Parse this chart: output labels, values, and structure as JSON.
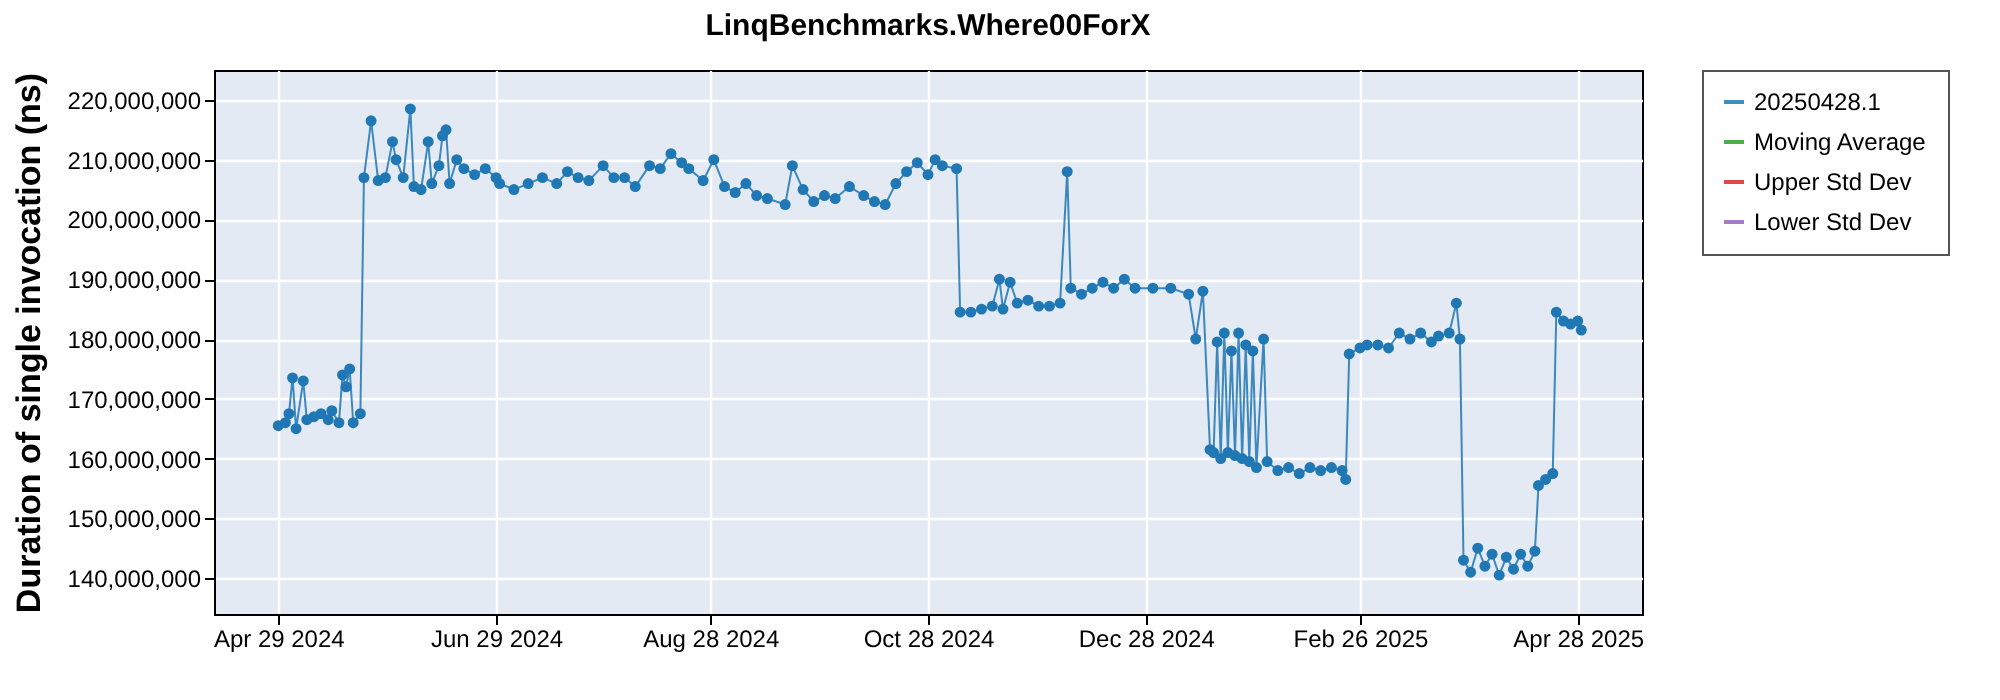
{
  "chart_data": {
    "type": "line",
    "title": "LinqBenchmarks.Where00ForX",
    "ylabel": "Duration of single invocation (ns)",
    "x": [
      "2024-04-29",
      "2024-05-01",
      "2024-05-02",
      "2024-05-03",
      "2024-05-04",
      "2024-05-06",
      "2024-05-07",
      "2024-05-09",
      "2024-05-11",
      "2024-05-13",
      "2024-05-14",
      "2024-05-16",
      "2024-05-17",
      "2024-05-18",
      "2024-05-19",
      "2024-05-20",
      "2024-05-22",
      "2024-05-23",
      "2024-05-25",
      "2024-05-27",
      "2024-05-29",
      "2024-05-31",
      "2024-06-01",
      "2024-06-03",
      "2024-06-05",
      "2024-06-06",
      "2024-06-08",
      "2024-06-10",
      "2024-06-11",
      "2024-06-13",
      "2024-06-14",
      "2024-06-15",
      "2024-06-16",
      "2024-06-18",
      "2024-06-20",
      "2024-06-23",
      "2024-06-26",
      "2024-06-29",
      "2024-06-30",
      "2024-07-04",
      "2024-07-08",
      "2024-07-12",
      "2024-07-16",
      "2024-07-19",
      "2024-07-22",
      "2024-07-25",
      "2024-07-29",
      "2024-08-01",
      "2024-08-04",
      "2024-08-07",
      "2024-08-11",
      "2024-08-14",
      "2024-08-17",
      "2024-08-20",
      "2024-08-22",
      "2024-08-26",
      "2024-08-29",
      "2024-09-01",
      "2024-09-04",
      "2024-09-07",
      "2024-09-10",
      "2024-09-13",
      "2024-09-18",
      "2024-09-20",
      "2024-09-23",
      "2024-09-26",
      "2024-09-29",
      "2024-10-02",
      "2024-10-06",
      "2024-10-10",
      "2024-10-13",
      "2024-10-16",
      "2024-10-19",
      "2024-10-22",
      "2024-10-25",
      "2024-10-28",
      "2024-10-30",
      "2024-11-01",
      "2024-11-05",
      "2024-11-06",
      "2024-11-09",
      "2024-11-12",
      "2024-11-15",
      "2024-11-17",
      "2024-11-18",
      "2024-11-20",
      "2024-11-22",
      "2024-11-25",
      "2024-11-28",
      "2024-12-01",
      "2024-12-04",
      "2024-12-06",
      "2024-12-07",
      "2024-12-10",
      "2024-12-13",
      "2024-12-16",
      "2024-12-19",
      "2024-12-22",
      "2024-12-25",
      "2024-12-30",
      "2025-01-04",
      "2025-01-09",
      "2025-01-11",
      "2025-01-13",
      "2025-01-15",
      "2025-01-16",
      "2025-01-17",
      "2025-01-18",
      "2025-01-19",
      "2025-01-20",
      "2025-01-21",
      "2025-01-22",
      "2025-01-23",
      "2025-01-24",
      "2025-01-25",
      "2025-01-26",
      "2025-01-27",
      "2025-01-28",
      "2025-01-30",
      "2025-01-31",
      "2025-02-03",
      "2025-02-06",
      "2025-02-09",
      "2025-02-12",
      "2025-02-15",
      "2025-02-18",
      "2025-02-21",
      "2025-02-22",
      "2025-02-23",
      "2025-02-26",
      "2025-02-28",
      "2025-03-03",
      "2025-03-06",
      "2025-03-09",
      "2025-03-12",
      "2025-03-15",
      "2025-03-18",
      "2025-03-20",
      "2025-03-23",
      "2025-03-25",
      "2025-03-26",
      "2025-03-27",
      "2025-03-29",
      "2025-03-31",
      "2025-04-02",
      "2025-04-04",
      "2025-04-06",
      "2025-04-08",
      "2025-04-10",
      "2025-04-12",
      "2025-04-14",
      "2025-04-16",
      "2025-04-17",
      "2025-04-19",
      "2025-04-21",
      "2025-04-22",
      "2025-04-24",
      "2025-04-26",
      "2025-04-28",
      "2025-04-29"
    ],
    "series": [
      {
        "name": "20250428.1",
        "color": "#1f77b4",
        "values": [
          165500000,
          166000000,
          167500000,
          173500000,
          165000000,
          173000000,
          166500000,
          167000000,
          167500000,
          166500000,
          168000000,
          166000000,
          174000000,
          172000000,
          175000000,
          166000000,
          167500000,
          207000000,
          216500000,
          206500000,
          207000000,
          213000000,
          210000000,
          207000000,
          218500000,
          205500000,
          205000000,
          213000000,
          206000000,
          209000000,
          214000000,
          215000000,
          206000000,
          210000000,
          208500000,
          207500000,
          208500000,
          207000000,
          206000000,
          205000000,
          206000000,
          207000000,
          206000000,
          208000000,
          207000000,
          206500000,
          209000000,
          207000000,
          207000000,
          205500000,
          209000000,
          208500000,
          211000000,
          209500000,
          208500000,
          206500000,
          210000000,
          205500000,
          204500000,
          206000000,
          204000000,
          203500000,
          202500000,
          209000000,
          205000000,
          203000000,
          204000000,
          203500000,
          205500000,
          204000000,
          203000000,
          202500000,
          206000000,
          208000000,
          209500000,
          207500000,
          210000000,
          209000000,
          208500000,
          184500000,
          184500000,
          185000000,
          185500000,
          190000000,
          185000000,
          189500000,
          186000000,
          186500000,
          185500000,
          185500000,
          186000000,
          208000000,
          188500000,
          187500000,
          188500000,
          189500000,
          188500000,
          190000000,
          188500000,
          188500000,
          188500000,
          187500000,
          180000000,
          188000000,
          161500000,
          161000000,
          179500000,
          160000000,
          181000000,
          161000000,
          178000000,
          160500000,
          181000000,
          160000000,
          179000000,
          159500000,
          178000000,
          158500000,
          180000000,
          159500000,
          158000000,
          158500000,
          157500000,
          158500000,
          158000000,
          158500000,
          158000000,
          156500000,
          177500000,
          178500000,
          179000000,
          179000000,
          178500000,
          181000000,
          180000000,
          181000000,
          179500000,
          180500000,
          181000000,
          186000000,
          180000000,
          143000000,
          141000000,
          145000000,
          142000000,
          144000000,
          140500000,
          143500000,
          141500000,
          144000000,
          142000000,
          144500000,
          155500000,
          156500000,
          157500000,
          184500000,
          183000000,
          182500000,
          183000000,
          181500000
        ]
      },
      {
        "name": "Moving Average",
        "color": "#2ca02c",
        "values": [
          null,
          null,
          null,
          null,
          null,
          null,
          null,
          null,
          null,
          null,
          null,
          null,
          null,
          null,
          null,
          null,
          null,
          null,
          null,
          null,
          null,
          null,
          null,
          null,
          null,
          null,
          null,
          null,
          null,
          null,
          null,
          null,
          null,
          null,
          null,
          null,
          null,
          null,
          null,
          null,
          null,
          null,
          null,
          null,
          null,
          null,
          null,
          null,
          null,
          null,
          null,
          null,
          null,
          null,
          null,
          null,
          null,
          null,
          null,
          null,
          null,
          null,
          null,
          null,
          null,
          null,
          null,
          null,
          null,
          null,
          null,
          null,
          null,
          null,
          null,
          null,
          null,
          null,
          null,
          null,
          null,
          null,
          null,
          null,
          null,
          null,
          null,
          null,
          null,
          null,
          null,
          null,
          null,
          null,
          null,
          null,
          null,
          null,
          null,
          null,
          null,
          null,
          null,
          null,
          null,
          null,
          null,
          null,
          null,
          null,
          null,
          null,
          null,
          null,
          null,
          null,
          null,
          null,
          null,
          null,
          null,
          null,
          null,
          null,
          null,
          null,
          null,
          null,
          null,
          null,
          null,
          null,
          null,
          null,
          null,
          null,
          null,
          null,
          null,
          null,
          null,
          null,
          null,
          null,
          null,
          null,
          null,
          null,
          null,
          null,
          null,
          null,
          null,
          null,
          null,
          null,
          null,
          null,
          null,
          null
        ]
      },
      {
        "name": "Upper Std Dev",
        "color": "#d62728",
        "values": [
          null,
          null,
          null,
          null,
          null,
          null,
          null,
          null,
          null,
          null,
          null,
          null,
          null,
          null,
          null,
          null,
          null,
          null,
          null,
          null,
          null,
          null,
          null,
          null,
          null,
          null,
          null,
          null,
          null,
          null,
          null,
          null,
          null,
          null,
          null,
          null,
          null,
          null,
          null,
          null,
          null,
          null,
          null,
          null,
          null,
          null,
          null,
          null,
          null,
          null,
          null,
          null,
          null,
          null,
          null,
          null,
          null,
          null,
          null,
          null,
          null,
          null,
          null,
          null,
          null,
          null,
          null,
          null,
          null,
          null,
          null,
          null,
          null,
          null,
          null,
          null,
          null,
          null,
          null,
          null,
          null,
          null,
          null,
          null,
          null,
          null,
          null,
          null,
          null,
          null,
          null,
          null,
          null,
          null,
          null,
          null,
          null,
          null,
          null,
          null,
          null,
          null,
          null,
          null,
          null,
          null,
          null,
          null,
          null,
          null,
          null,
          null,
          null,
          null,
          null,
          null,
          null,
          null,
          null,
          null,
          null,
          null,
          null,
          null,
          null,
          null,
          null,
          null,
          null,
          null,
          null,
          null,
          null,
          null,
          null,
          null,
          null,
          null,
          null,
          null,
          null,
          null,
          null,
          null,
          null,
          null,
          null,
          null,
          null,
          null,
          null,
          null,
          null,
          null,
          null,
          null,
          null,
          null,
          null,
          null
        ]
      },
      {
        "name": "Lower Std Dev",
        "color": "#9467bd",
        "values": [
          null,
          null,
          null,
          null,
          null,
          null,
          null,
          null,
          null,
          null,
          null,
          null,
          null,
          null,
          null,
          null,
          null,
          null,
          null,
          null,
          null,
          null,
          null,
          null,
          null,
          null,
          null,
          null,
          null,
          null,
          null,
          null,
          null,
          null,
          null,
          null,
          null,
          null,
          null,
          null,
          null,
          null,
          null,
          null,
          null,
          null,
          null,
          null,
          null,
          null,
          null,
          null,
          null,
          null,
          null,
          null,
          null,
          null,
          null,
          null,
          null,
          null,
          null,
          null,
          null,
          null,
          null,
          null,
          null,
          null,
          null,
          null,
          null,
          null,
          null,
          null,
          null,
          null,
          null,
          null,
          null,
          null,
          null,
          null,
          null,
          null,
          null,
          null,
          null,
          null,
          null,
          null,
          null,
          null,
          null,
          null,
          null,
          null,
          null,
          null,
          null,
          null,
          null,
          null,
          null,
          null,
          null,
          null,
          null,
          null,
          null,
          null,
          null,
          null,
          null,
          null,
          null,
          null,
          null,
          null,
          null,
          null,
          null,
          null,
          null,
          null,
          null,
          null,
          null,
          null,
          null,
          null,
          null,
          null,
          null,
          null,
          null,
          null,
          null,
          null,
          null,
          null,
          null,
          null,
          null,
          null,
          null,
          null,
          null,
          null,
          null,
          null,
          null,
          null,
          null,
          null,
          null,
          null,
          null,
          null
        ]
      }
    ],
    "xlim": [
      "2024-04-11",
      "2025-05-16"
    ],
    "xticks": [
      {
        "value": "2024-04-29",
        "label": "Apr 29 2024"
      },
      {
        "value": "2024-06-29",
        "label": "Jun 29 2024"
      },
      {
        "value": "2024-08-28",
        "label": "Aug 28 2024"
      },
      {
        "value": "2024-10-28",
        "label": "Oct 28 2024"
      },
      {
        "value": "2024-12-28",
        "label": "Dec 28 2024"
      },
      {
        "value": "2025-02-26",
        "label": "Feb 26 2025"
      },
      {
        "value": "2025-04-28",
        "label": "Apr 28 2025"
      }
    ],
    "ylim": [
      134000000,
      225000000
    ],
    "yticks": [
      {
        "value": 140000000,
        "label": "140,000,000"
      },
      {
        "value": 150000000,
        "label": "150,000,000"
      },
      {
        "value": 160000000,
        "label": "160,000,000"
      },
      {
        "value": 170000000,
        "label": "170,000,000"
      },
      {
        "value": 180000000,
        "label": "180,000,000"
      },
      {
        "value": 190000000,
        "label": "190,000,000"
      },
      {
        "value": 200000000,
        "label": "200,000,000"
      },
      {
        "value": 210000000,
        "label": "210,000,000"
      },
      {
        "value": 220000000,
        "label": "220,000,000"
      }
    ],
    "grid": true,
    "legend": "right",
    "marker": "circle",
    "line_style": "solid"
  }
}
